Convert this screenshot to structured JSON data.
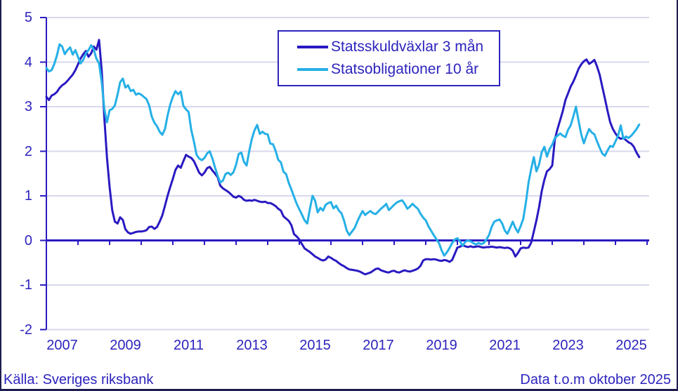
{
  "legend": {
    "series1_label": "Statsskuldväxlar 3 mån",
    "series2_label": "Statsobligationer 10 år"
  },
  "footer": {
    "source": "Källa: Sveriges riksbank",
    "note": "Data t.o.m oktober 2025"
  },
  "colors": {
    "navy": "#2a1ac1",
    "cyan": "#25b0e6",
    "grid": "#d7d8ee",
    "text": "#2d24bd",
    "frame_border": "#1d1d4f"
  },
  "chart_data": {
    "type": "line",
    "title": "",
    "xlabel": "",
    "ylabel": "",
    "x_start_year": 2007,
    "x_step_months": 1,
    "x_end_label": "oktober 2025",
    "xlim": [
      2007,
      2026.07
    ],
    "ylim": [
      -2,
      5
    ],
    "grid": true,
    "legend_position": "top-center",
    "y_ticks": [
      5,
      4,
      3,
      2,
      1,
      0,
      -1,
      -2
    ],
    "x_tick_years_labeled": [
      2007,
      2009,
      2011,
      2013,
      2015,
      2017,
      2019,
      2021,
      2023,
      2025
    ],
    "series": [
      {
        "name": "Statsskuldväxlar 3 mån",
        "color_key": "navy",
        "values": [
          3.22,
          3.15,
          3.25,
          3.28,
          3.33,
          3.42,
          3.48,
          3.52,
          3.58,
          3.65,
          3.72,
          3.82,
          3.95,
          4.08,
          4.18,
          4.25,
          4.12,
          4.2,
          4.35,
          4.28,
          4.5,
          3.8,
          2.75,
          1.85,
          1.2,
          0.68,
          0.42,
          0.38,
          0.52,
          0.46,
          0.25,
          0.18,
          0.15,
          0.17,
          0.19,
          0.2,
          0.2,
          0.21,
          0.23,
          0.3,
          0.31,
          0.26,
          0.3,
          0.42,
          0.56,
          0.78,
          1.0,
          1.2,
          1.38,
          1.58,
          1.68,
          1.63,
          1.78,
          1.92,
          1.88,
          1.85,
          1.78,
          1.65,
          1.52,
          1.46,
          1.52,
          1.62,
          1.65,
          1.57,
          1.5,
          1.42,
          1.23,
          1.17,
          1.13,
          1.09,
          1.04,
          0.98,
          0.96,
          1.0,
          0.97,
          0.91,
          0.89,
          0.9,
          0.89,
          0.91,
          0.89,
          0.87,
          0.86,
          0.87,
          0.84,
          0.84,
          0.81,
          0.77,
          0.71,
          0.67,
          0.54,
          0.49,
          0.44,
          0.34,
          0.14,
          0.09,
          0.02,
          -0.08,
          -0.18,
          -0.22,
          -0.26,
          -0.31,
          -0.36,
          -0.39,
          -0.43,
          -0.45,
          -0.43,
          -0.36,
          -0.39,
          -0.43,
          -0.46,
          -0.51,
          -0.55,
          -0.58,
          -0.62,
          -0.65,
          -0.66,
          -0.67,
          -0.68,
          -0.7,
          -0.73,
          -0.76,
          -0.74,
          -0.72,
          -0.68,
          -0.64,
          -0.63,
          -0.67,
          -0.69,
          -0.71,
          -0.72,
          -0.69,
          -0.68,
          -0.71,
          -0.72,
          -0.69,
          -0.67,
          -0.69,
          -0.7,
          -0.68,
          -0.66,
          -0.63,
          -0.57,
          -0.45,
          -0.42,
          -0.42,
          -0.43,
          -0.42,
          -0.43,
          -0.45,
          -0.46,
          -0.44,
          -0.45,
          -0.48,
          -0.44,
          -0.3,
          -0.16,
          -0.14,
          -0.11,
          -0.13,
          -0.15,
          -0.13,
          -0.15,
          -0.14,
          -0.13,
          -0.15,
          -0.16,
          -0.15,
          -0.15,
          -0.14,
          -0.15,
          -0.16,
          -0.15,
          -0.16,
          -0.17,
          -0.16,
          -0.18,
          -0.23,
          -0.36,
          -0.28,
          -0.18,
          -0.16,
          -0.17,
          -0.16,
          -0.05,
          0.2,
          0.45,
          0.74,
          1.1,
          1.36,
          1.55,
          1.6,
          1.68,
          2.26,
          2.5,
          2.7,
          2.9,
          3.15,
          3.3,
          3.45,
          3.56,
          3.7,
          3.85,
          3.95,
          4.02,
          4.06,
          3.96,
          4.0,
          4.05,
          3.9,
          3.72,
          3.45,
          3.18,
          2.9,
          2.65,
          2.5,
          2.4,
          2.32,
          2.28,
          2.3,
          2.25,
          2.2,
          2.17,
          2.1,
          1.97,
          1.87
        ]
      },
      {
        "name": "Statsobligationer 10 år",
        "color_key": "cyan",
        "values": [
          3.87,
          3.79,
          3.82,
          3.96,
          4.15,
          4.4,
          4.35,
          4.18,
          4.27,
          4.33,
          4.17,
          4.27,
          4.12,
          3.97,
          4.05,
          4.2,
          4.27,
          4.38,
          4.28,
          4.08,
          3.97,
          3.55,
          2.95,
          2.65,
          2.92,
          2.95,
          3.03,
          3.27,
          3.55,
          3.63,
          3.43,
          3.48,
          3.35,
          3.38,
          3.27,
          3.3,
          3.27,
          3.22,
          3.17,
          3.03,
          2.78,
          2.64,
          2.56,
          2.44,
          2.37,
          2.5,
          2.8,
          3.05,
          3.22,
          3.35,
          3.28,
          3.34,
          3.02,
          2.94,
          2.88,
          2.48,
          2.22,
          1.92,
          1.84,
          1.8,
          1.85,
          1.95,
          2.0,
          1.84,
          1.64,
          1.45,
          1.3,
          1.34,
          1.49,
          1.52,
          1.47,
          1.53,
          1.7,
          1.94,
          1.97,
          1.76,
          1.68,
          2.01,
          2.28,
          2.47,
          2.59,
          2.39,
          2.44,
          2.39,
          2.38,
          2.17,
          2.16,
          2.01,
          1.81,
          1.75,
          1.54,
          1.49,
          1.29,
          1.14,
          0.98,
          0.82,
          0.7,
          0.58,
          0.45,
          0.38,
          0.7,
          1.0,
          0.89,
          0.63,
          0.73,
          0.67,
          0.8,
          0.84,
          0.86,
          0.72,
          0.78,
          0.67,
          0.61,
          0.44,
          0.22,
          0.12,
          0.2,
          0.28,
          0.42,
          0.55,
          0.66,
          0.57,
          0.62,
          0.66,
          0.61,
          0.59,
          0.65,
          0.71,
          0.76,
          0.82,
          0.68,
          0.74,
          0.8,
          0.85,
          0.88,
          0.9,
          0.82,
          0.71,
          0.76,
          0.82,
          0.76,
          0.71,
          0.6,
          0.51,
          0.45,
          0.32,
          0.22,
          0.12,
          0.03,
          -0.06,
          -0.22,
          -0.34,
          -0.27,
          -0.17,
          -0.06,
          0.02,
          0.05,
          -0.02,
          -0.12,
          -0.03,
          0.0,
          -0.02,
          -0.06,
          -0.09,
          -0.06,
          -0.08,
          -0.06,
          0.02,
          0.12,
          0.3,
          0.42,
          0.45,
          0.47,
          0.38,
          0.22,
          0.15,
          0.28,
          0.42,
          0.28,
          0.18,
          0.32,
          0.48,
          0.85,
          1.3,
          1.6,
          1.87,
          1.55,
          1.7,
          1.98,
          2.1,
          1.88,
          2.05,
          2.15,
          2.3,
          2.35,
          2.4,
          2.35,
          2.32,
          2.48,
          2.58,
          2.78,
          3.0,
          2.68,
          2.38,
          2.18,
          2.35,
          2.5,
          2.42,
          2.38,
          2.22,
          2.08,
          1.95,
          1.9,
          2.02,
          2.12,
          2.1,
          2.22,
          2.35,
          2.58,
          2.28,
          2.33,
          2.3,
          2.35,
          2.42,
          2.5,
          2.6
        ]
      }
    ]
  }
}
